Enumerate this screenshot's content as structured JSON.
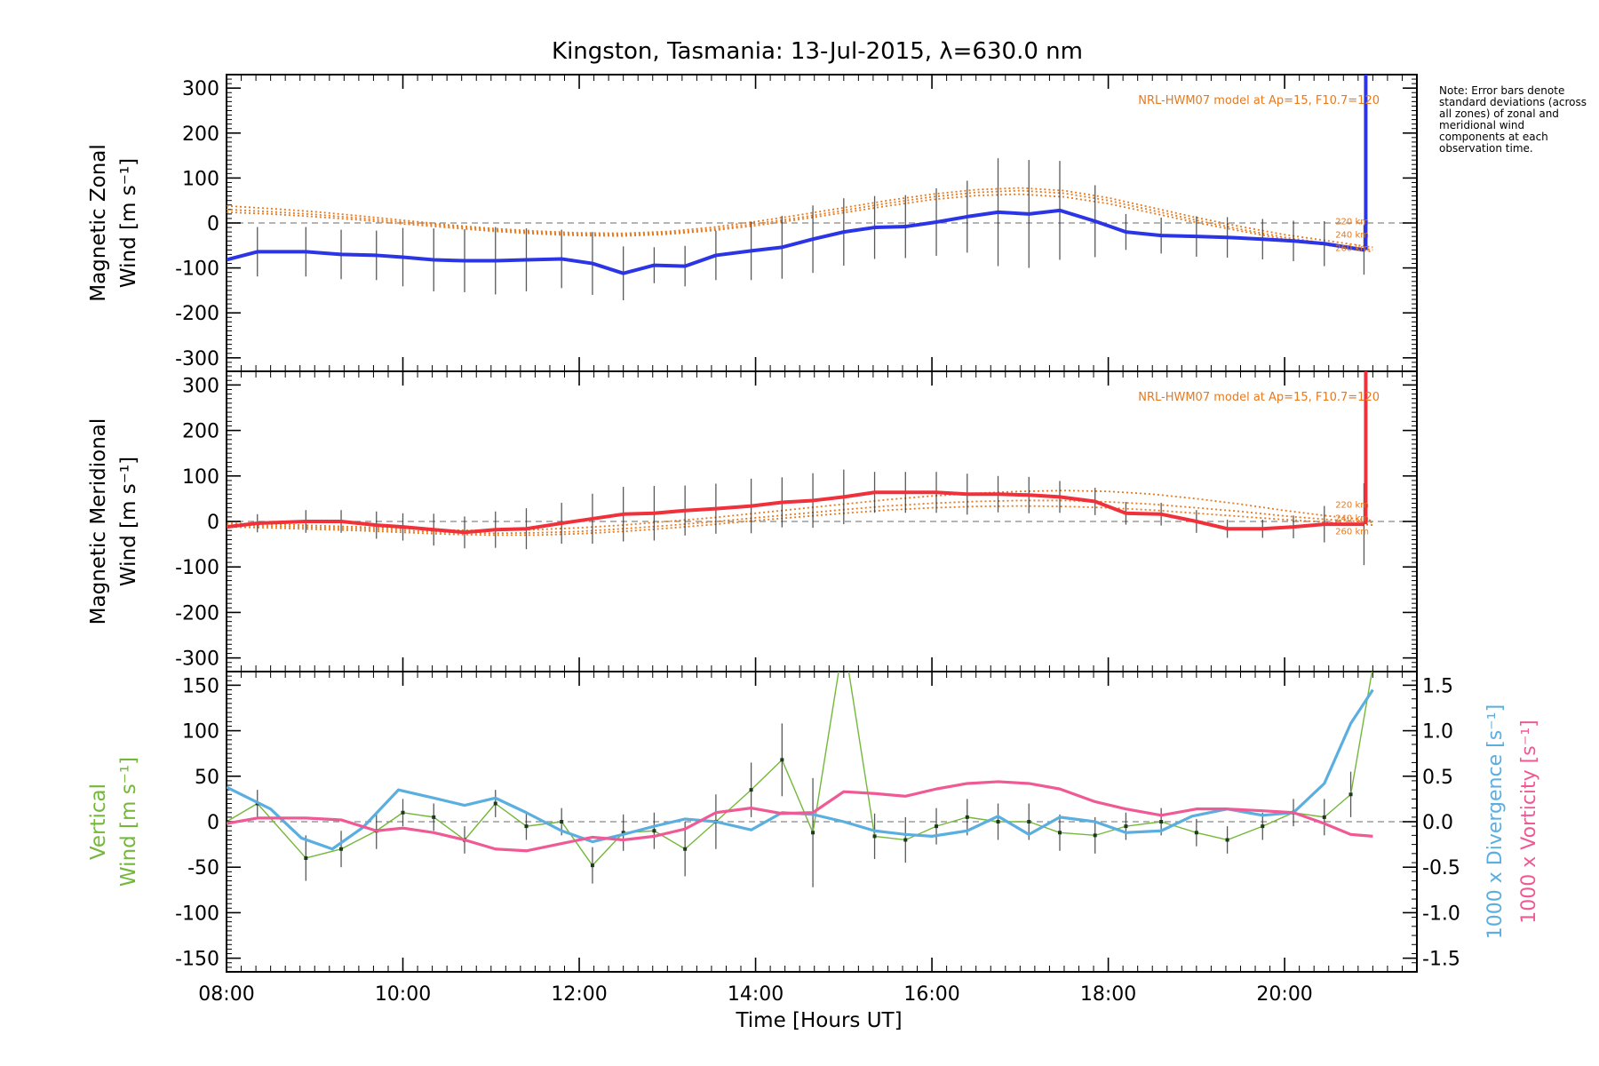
{
  "title": "Kingston, Tasmania: 13-Jul-2015, λ=630.0 nm",
  "note": "Note: Error bars denote standard deviations (across all zones) of zonal and meridional wind components at each observation time.",
  "x_axis": {
    "label": "Time [Hours UT]",
    "ticks": [
      "08:00",
      "10:00",
      "12:00",
      "14:00",
      "16:00",
      "18:00",
      "20:00"
    ]
  },
  "colors": {
    "zonal": "#2b35e6",
    "meridional": "#f0303a",
    "vertical": "#74b83a",
    "divergence": "#5aaee0",
    "vorticity": "#ef5a95",
    "model": "#e67a1e",
    "errorbar": "#222222",
    "zero_line": "#888888"
  },
  "chart_data": [
    {
      "type": "line",
      "panel": "zonal",
      "ylabel_lines": [
        "Magnetic Zonal",
        "Wind"
      ],
      "yunit": "[m s⁻¹]",
      "ylim": [
        -330,
        330
      ],
      "yticks": [
        -300,
        -200,
        -100,
        0,
        100,
        200,
        300
      ],
      "xlim": [
        8.0,
        21.5
      ],
      "model_label": "NRL-HWM07 model at Ap=15, F10.7=120",
      "model_altitude_labels": [
        "220 km",
        "240 km",
        "260 km"
      ],
      "x": [
        8.0,
        8.35,
        8.9,
        9.3,
        9.7,
        10.0,
        10.35,
        10.7,
        11.05,
        11.4,
        11.8,
        12.15,
        12.5,
        12.85,
        13.2,
        13.55,
        13.95,
        14.3,
        14.65,
        15.0,
        15.35,
        15.7,
        16.05,
        16.4,
        16.75,
        17.1,
        17.45,
        17.85,
        18.2,
        18.6,
        19.0,
        19.35,
        19.75,
        20.1,
        20.45,
        20.9
      ],
      "series": [
        {
          "values": [
            -82,
            -64,
            -64,
            -70,
            -72,
            -76,
            -82,
            -84,
            -84,
            -82,
            -80,
            -90,
            -112,
            -94,
            -96,
            -72,
            -62,
            -54,
            -36,
            -20,
            -10,
            -8,
            2,
            14,
            24,
            20,
            28,
            4,
            -20,
            -28,
            -30,
            -32,
            -36,
            -40,
            -46,
            -60
          ],
          "err": [
            60,
            55,
            55,
            55,
            55,
            65,
            70,
            70,
            75,
            70,
            65,
            70,
            60,
            40,
            45,
            55,
            65,
            70,
            75,
            75,
            70,
            70,
            75,
            80,
            120,
            120,
            110,
            80,
            40,
            40,
            45,
            45,
            45,
            45,
            50,
            55
          ]
        }
      ],
      "models": [
        {
          "x": [
            8.0,
            8.5,
            9.0,
            9.5,
            10.0,
            10.5,
            11.0,
            11.5,
            12.0,
            12.5,
            13.0,
            13.5,
            14.0,
            14.5,
            15.0,
            15.5,
            16.0,
            16.5,
            17.0,
            17.5,
            18.0,
            18.5,
            19.0,
            19.5,
            20.0,
            20.5,
            21.0
          ],
          "y": [
            38,
            32,
            25,
            16,
            6,
            -4,
            -12,
            -18,
            -22,
            -23,
            -19,
            -10,
            3,
            18,
            34,
            50,
            64,
            74,
            78,
            72,
            56,
            34,
            12,
            -8,
            -26,
            -40,
            -54
          ]
        },
        {
          "x": [
            8.0,
            8.5,
            9.0,
            9.5,
            10.0,
            10.5,
            11.0,
            11.5,
            12.0,
            12.5,
            13.0,
            13.5,
            14.0,
            14.5,
            15.0,
            15.5,
            16.0,
            16.5,
            17.0,
            17.5,
            18.0,
            18.5,
            19.0,
            19.5,
            20.0,
            20.5,
            21.0
          ],
          "y": [
            30,
            25,
            19,
            11,
            2,
            -7,
            -15,
            -21,
            -25,
            -26,
            -22,
            -14,
            -2,
            12,
            28,
            44,
            58,
            68,
            72,
            66,
            50,
            28,
            6,
            -14,
            -32,
            -46,
            -60
          ]
        },
        {
          "x": [
            8.0,
            8.5,
            9.0,
            9.5,
            10.0,
            10.5,
            11.0,
            11.5,
            12.0,
            12.5,
            13.0,
            13.5,
            14.0,
            14.5,
            15.0,
            15.5,
            16.0,
            16.5,
            17.0,
            17.5,
            18.0,
            18.5,
            19.0,
            19.5,
            20.0,
            20.5,
            21.0
          ],
          "y": [
            24,
            20,
            14,
            7,
            -2,
            -10,
            -18,
            -24,
            -28,
            -29,
            -25,
            -17,
            -6,
            8,
            23,
            38,
            52,
            61,
            64,
            58,
            43,
            22,
            1,
            -18,
            -36,
            -50,
            -64
          ]
        }
      ]
    },
    {
      "type": "line",
      "panel": "meridional",
      "ylabel_lines": [
        "Magnetic Meridional",
        "Wind"
      ],
      "yunit": "[m s⁻¹]",
      "ylim": [
        -330,
        330
      ],
      "yticks": [
        -300,
        -200,
        -100,
        0,
        100,
        200,
        300
      ],
      "xlim": [
        8.0,
        21.5
      ],
      "model_label": "NRL-HWM07 model at Ap=15, F10.7=120",
      "model_altitude_labels": [
        "220 km",
        "240 km",
        "260 km"
      ],
      "x": [
        8.0,
        8.35,
        8.9,
        9.3,
        9.7,
        10.0,
        10.35,
        10.7,
        11.05,
        11.4,
        11.8,
        12.15,
        12.5,
        12.85,
        13.2,
        13.55,
        13.95,
        14.3,
        14.65,
        15.0,
        15.35,
        15.7,
        16.05,
        16.4,
        16.75,
        17.1,
        17.45,
        17.85,
        18.2,
        18.6,
        19.0,
        19.35,
        19.75,
        20.1,
        20.45,
        20.9
      ],
      "series": [
        {
          "values": [
            -12,
            -4,
            0,
            0,
            -8,
            -12,
            -18,
            -24,
            -18,
            -16,
            -4,
            6,
            16,
            18,
            24,
            28,
            34,
            42,
            46,
            54,
            64,
            64,
            64,
            60,
            60,
            58,
            54,
            44,
            18,
            16,
            0,
            -16,
            -16,
            -12,
            -6,
            -6
          ],
          "err": [
            20,
            20,
            25,
            25,
            30,
            30,
            35,
            35,
            40,
            45,
            45,
            55,
            60,
            60,
            55,
            55,
            60,
            55,
            60,
            60,
            45,
            45,
            45,
            45,
            40,
            40,
            35,
            30,
            25,
            25,
            25,
            20,
            20,
            25,
            40,
            90
          ]
        }
      ],
      "models": [
        {
          "x": [
            8.0,
            8.5,
            9.0,
            9.5,
            10.0,
            10.5,
            11.0,
            11.5,
            12.0,
            12.5,
            13.0,
            13.5,
            14.0,
            14.5,
            15.0,
            15.5,
            16.0,
            16.5,
            17.0,
            17.5,
            18.0,
            18.5,
            19.0,
            19.5,
            20.0,
            20.5,
            21.0
          ],
          "y": [
            -4,
            -6,
            -9,
            -12,
            -16,
            -19,
            -20,
            -18,
            -14,
            -8,
            0,
            8,
            18,
            28,
            38,
            48,
            56,
            62,
            66,
            68,
            66,
            60,
            50,
            38,
            24,
            12,
            2
          ]
        },
        {
          "x": [
            8.0,
            8.5,
            9.0,
            9.5,
            10.0,
            10.5,
            11.0,
            11.5,
            12.0,
            12.5,
            13.0,
            13.5,
            14.0,
            14.5,
            15.0,
            15.5,
            16.0,
            16.5,
            17.0,
            17.5,
            18.0,
            18.5,
            19.0,
            19.5,
            20.0,
            20.5,
            21.0
          ],
          "y": [
            -8,
            -10,
            -13,
            -16,
            -20,
            -24,
            -26,
            -25,
            -22,
            -16,
            -9,
            -1,
            8,
            17,
            26,
            34,
            40,
            44,
            46,
            46,
            43,
            38,
            30,
            22,
            12,
            4,
            -2
          ]
        },
        {
          "x": [
            8.0,
            8.5,
            9.0,
            9.5,
            10.0,
            10.5,
            11.0,
            11.5,
            12.0,
            12.5,
            13.0,
            13.5,
            14.0,
            14.5,
            15.0,
            15.5,
            16.0,
            16.5,
            17.0,
            17.5,
            18.0,
            18.5,
            19.0,
            19.5,
            20.0,
            20.5,
            21.0
          ],
          "y": [
            -12,
            -14,
            -17,
            -20,
            -24,
            -28,
            -30,
            -30,
            -27,
            -22,
            -15,
            -7,
            2,
            10,
            18,
            25,
            30,
            33,
            34,
            33,
            30,
            25,
            18,
            11,
            4,
            -2,
            -8
          ]
        }
      ]
    },
    {
      "type": "line",
      "panel": "vertical",
      "ylabel_lines": [
        "Vertical",
        "Wind"
      ],
      "yunit": "[m s⁻¹]",
      "ylim": [
        -165,
        165
      ],
      "yticks": [
        -150,
        -100,
        -50,
        0,
        50,
        100,
        150
      ],
      "right_axis": {
        "label_divergence": "1000 x Divergence",
        "label_vorticity": "1000 x Vorticity",
        "unit": "[s⁻¹]",
        "ylim": [
          -1.65,
          1.65
        ],
        "yticks": [
          -1.5,
          -1.0,
          -0.5,
          0.0,
          0.5,
          1.0,
          1.5
        ]
      },
      "xlim": [
        8.0,
        21.5
      ],
      "series": [
        {
          "name": "vertical",
          "x": [
            8.0,
            8.35,
            8.9,
            9.3,
            9.7,
            10.0,
            10.35,
            10.7,
            11.05,
            11.4,
            11.8,
            12.15,
            12.5,
            12.85,
            13.2,
            13.55,
            13.95,
            14.3,
            14.65,
            15.0,
            15.35,
            15.7,
            16.05,
            16.4,
            16.75,
            17.1,
            17.45,
            17.85,
            18.2,
            18.6,
            19.0,
            19.35,
            19.75,
            20.1,
            20.45,
            20.75,
            21.0
          ],
          "values": [
            0,
            20,
            -40,
            -30,
            -10,
            10,
            5,
            -20,
            20,
            -5,
            0,
            -48,
            -12,
            -10,
            -30,
            0,
            35,
            68,
            -12,
            200,
            -16,
            -20,
            -5,
            5,
            0,
            0,
            -12,
            -15,
            -5,
            0,
            -12,
            -20,
            -5,
            10,
            5,
            30,
            170
          ],
          "err": [
            0,
            15,
            25,
            20,
            20,
            15,
            15,
            15,
            15,
            15,
            15,
            20,
            20,
            20,
            30,
            30,
            30,
            40,
            60,
            0,
            25,
            25,
            20,
            20,
            20,
            20,
            20,
            20,
            15,
            15,
            15,
            15,
            15,
            15,
            20,
            25,
            0
          ]
        },
        {
          "name": "divergence",
          "x": [
            8.0,
            8.5,
            8.85,
            9.2,
            9.55,
            9.95,
            10.35,
            10.7,
            11.05,
            11.4,
            11.8,
            12.15,
            12.5,
            12.85,
            13.2,
            13.55,
            13.95,
            14.3,
            14.65,
            15.0,
            15.35,
            15.7,
            16.0,
            16.4,
            16.75,
            17.1,
            17.45,
            17.85,
            18.2,
            18.6,
            18.95,
            19.35,
            19.75,
            20.1,
            20.45,
            20.75,
            21.0
          ],
          "values": [
            0.38,
            0.14,
            -0.18,
            -0.3,
            -0.06,
            0.35,
            0.26,
            0.18,
            0.26,
            0.1,
            -0.1,
            -0.22,
            -0.14,
            -0.05,
            0.03,
            0.0,
            -0.09,
            0.1,
            0.08,
            0.0,
            -0.1,
            -0.14,
            -0.16,
            -0.1,
            0.06,
            -0.14,
            0.05,
            0.0,
            -0.12,
            -0.1,
            0.06,
            0.14,
            0.07,
            0.1,
            0.42,
            1.08,
            1.45
          ]
        },
        {
          "name": "vorticity",
          "x": [
            8.0,
            8.35,
            8.9,
            9.3,
            9.7,
            10.0,
            10.35,
            10.7,
            11.05,
            11.4,
            11.8,
            12.15,
            12.5,
            12.85,
            13.2,
            13.55,
            13.95,
            14.3,
            14.65,
            15.0,
            15.35,
            15.7,
            16.05,
            16.4,
            16.75,
            17.1,
            17.45,
            17.85,
            18.2,
            18.6,
            19.0,
            19.35,
            19.75,
            20.1,
            20.45,
            20.75,
            21.0
          ],
          "values": [
            -0.02,
            0.04,
            0.04,
            0.02,
            -0.1,
            -0.07,
            -0.12,
            -0.2,
            -0.3,
            -0.32,
            -0.24,
            -0.17,
            -0.2,
            -0.16,
            -0.08,
            0.1,
            0.15,
            0.09,
            0.1,
            0.33,
            0.31,
            0.28,
            0.36,
            0.42,
            0.44,
            0.42,
            0.36,
            0.22,
            0.14,
            0.07,
            0.14,
            0.14,
            0.12,
            0.1,
            -0.02,
            -0.14,
            -0.16
          ]
        }
      ]
    }
  ]
}
